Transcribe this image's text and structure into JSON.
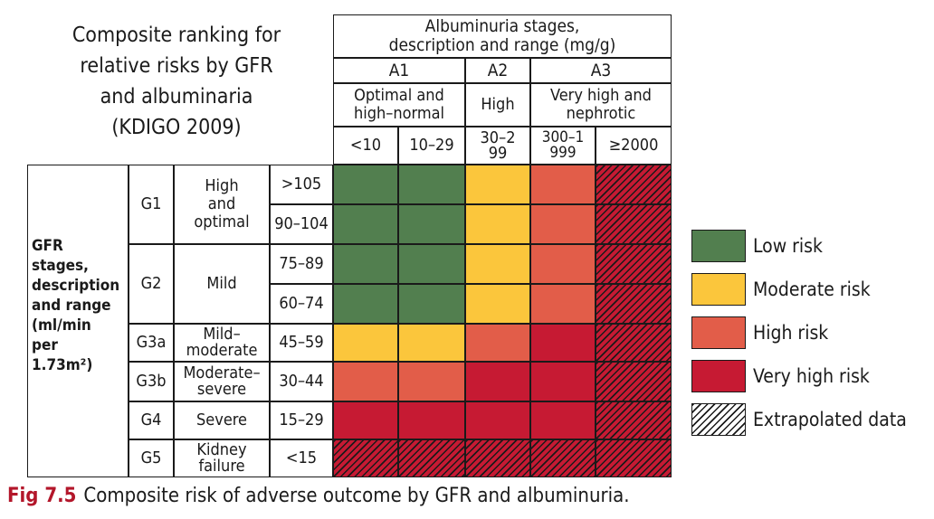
{
  "title": [
    "Composite ranking for",
    "relative risks by GFR",
    "and albuminaria",
    "(KDIGO 2009)"
  ],
  "albuminuria": {
    "header": [
      "Albuminuria stages,",
      "description and range (mg/g)"
    ],
    "stages": [
      "A1",
      "A2",
      "A3"
    ],
    "descriptions": [
      "Optimal and high–normal",
      "High",
      "Very high and nephrotic"
    ],
    "ranges": [
      "<10",
      "10–29",
      "30–299",
      "300–1999",
      "≥2000"
    ]
  },
  "gfr": {
    "header": [
      "GFR",
      "stages,",
      "description",
      "and range",
      "(ml/min",
      "per",
      "1.73m²)"
    ],
    "stages": [
      {
        "stage": "G1",
        "description": "High and optimal"
      },
      {
        "stage": "G2",
        "description": "Mild"
      },
      {
        "stage": "G3a",
        "description": "Mild–moderate"
      },
      {
        "stage": "G3b",
        "description": "Moderate–severe"
      },
      {
        "stage": "G4",
        "description": "Severe"
      },
      {
        "stage": "G5",
        "description": "Kidney failure"
      }
    ],
    "ranges": [
      ">105",
      "90–104",
      "75–89",
      "60–74",
      "45–59",
      "30–44",
      "15–29",
      "<15"
    ]
  },
  "colors": {
    "low": "#527f4f",
    "moderate": "#fbc63c",
    "high": "#e25d49",
    "very_high": "#c61a33"
  },
  "risk_grid": [
    [
      "low",
      "low",
      "moderate",
      "high",
      "very_high*"
    ],
    [
      "low",
      "low",
      "moderate",
      "high",
      "very_high*"
    ],
    [
      "low",
      "low",
      "moderate",
      "high",
      "very_high*"
    ],
    [
      "low",
      "low",
      "moderate",
      "high",
      "very_high*"
    ],
    [
      "moderate",
      "moderate",
      "high",
      "very_high",
      "very_high*"
    ],
    [
      "high",
      "high",
      "very_high",
      "very_high",
      "very_high*"
    ],
    [
      "very_high",
      "very_high",
      "very_high",
      "very_high",
      "very_high*"
    ],
    [
      "very_high*",
      "very_high*",
      "very_high*",
      "very_high*",
      "very_high*"
    ]
  ],
  "legend": [
    {
      "label": "Low risk",
      "color": "low"
    },
    {
      "label": "Moderate risk",
      "color": "moderate"
    },
    {
      "label": "High risk",
      "color": "high"
    },
    {
      "label": "Very high risk",
      "color": "very_high"
    },
    {
      "label": "Extrapolated data",
      "color": "hatch"
    }
  ],
  "caption": {
    "fig": "Fig 7.5",
    "text": "Composite risk of adverse outcome by GFR and albuminuria."
  }
}
